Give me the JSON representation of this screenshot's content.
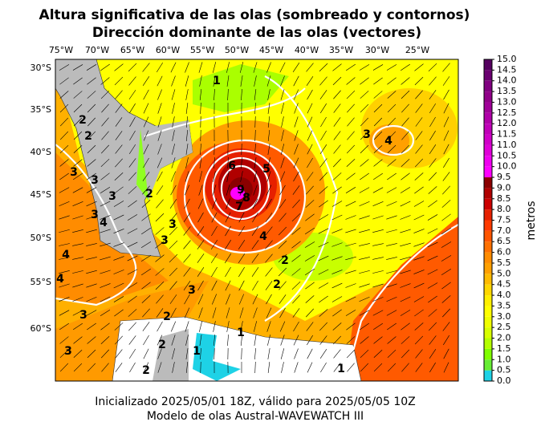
{
  "header": {
    "title_lines": [
      "Altura significativa de las olas (sombreado y contornos)",
      "Dirección dominante de las olas (vectores)"
    ]
  },
  "map": {
    "lon_labels": [
      "75°W",
      "70°W",
      "65°W",
      "60°W",
      "55°W",
      "50°W",
      "45°W",
      "40°W",
      "35°W",
      "30°W",
      "25°W"
    ],
    "lat_labels": [
      "30°S",
      "35°S",
      "40°S",
      "45°S",
      "50°S",
      "55°S",
      "60°S"
    ],
    "contour_labels": [
      1,
      2,
      2,
      3,
      3,
      3,
      4,
      4,
      3,
      4,
      2,
      3,
      2,
      4,
      5,
      6,
      7,
      8,
      9,
      3,
      4,
      2,
      2,
      3,
      3,
      3,
      3,
      2,
      1,
      1,
      2,
      1
    ]
  },
  "colorbar": {
    "label": "metros",
    "lim": [
      0,
      15
    ],
    "ticks": [
      {
        "value": 0,
        "label": "0.0"
      },
      {
        "value": 0.5,
        "label": "0.5"
      },
      {
        "value": 1,
        "label": "1.0"
      },
      {
        "value": 1.5,
        "label": "1.5"
      },
      {
        "value": 2,
        "label": "2.0"
      },
      {
        "value": 2.5,
        "label": "2.5"
      },
      {
        "value": 3,
        "label": "3.0"
      },
      {
        "value": 3.5,
        "label": "3.5"
      },
      {
        "value": 4,
        "label": "4.0"
      },
      {
        "value": 4.5,
        "label": "4.5"
      },
      {
        "value": 5,
        "label": "5.0"
      },
      {
        "value": 5.5,
        "label": "5.5"
      },
      {
        "value": 6,
        "label": "6.0"
      },
      {
        "value": 6.5,
        "label": "6.5"
      },
      {
        "value": 7,
        "label": "7.0"
      },
      {
        "value": 7.5,
        "label": "7.5"
      },
      {
        "value": 8,
        "label": "8.0"
      },
      {
        "value": 8.5,
        "label": "8.5"
      },
      {
        "value": 9,
        "label": "9.0"
      },
      {
        "value": 9.5,
        "label": "9.5"
      },
      {
        "value": 10,
        "label": "10.0"
      },
      {
        "value": 10.5,
        "label": "10.5"
      },
      {
        "value": 11,
        "label": "11.0"
      },
      {
        "value": 11.5,
        "label": "11.5"
      },
      {
        "value": 12,
        "label": "12.0"
      },
      {
        "value": 12.5,
        "label": "12.5"
      },
      {
        "value": 13,
        "label": "13.0"
      },
      {
        "value": 13.5,
        "label": "13.5"
      },
      {
        "value": 14,
        "label": "14.0"
      },
      {
        "value": 14.5,
        "label": "14.5"
      },
      {
        "value": 15,
        "label": "15.0"
      }
    ],
    "colors": [
      "#1ed2e6",
      "#66ee33",
      "#80ff00",
      "#b4ff00",
      "#d8ff00",
      "#f0ff00",
      "#ffff00",
      "#ffef00",
      "#ffd700",
      "#ffbb00",
      "#ffa000",
      "#ff8c00",
      "#ff7000",
      "#ff5500",
      "#ff3a00",
      "#e62000",
      "#cc0000",
      "#b00000",
      "#8b0000",
      "#ff00ff",
      "#f000f0",
      "#e000d8",
      "#d000c8",
      "#c000b8",
      "#b000a8",
      "#a00098",
      "#900088",
      "#800080",
      "#6a0070",
      "#55005f"
    ]
  },
  "footer": {
    "lines": [
      "Inicializado 2025/05/01 18Z, válido para 2025/05/05 10Z",
      "Modelo de olas Austral-WAVEWATCH III"
    ]
  }
}
